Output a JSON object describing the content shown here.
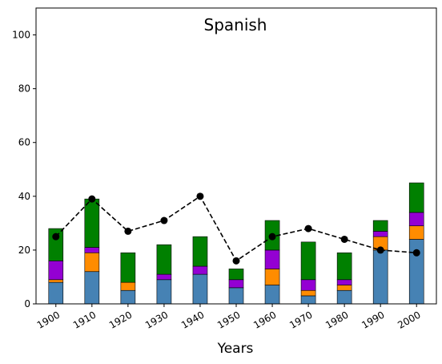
{
  "chart_data": {
    "type": "bar",
    "stacked": true,
    "title": "Spanish",
    "xlabel": "Years",
    "ylabel": "",
    "ylim": [
      0,
      110
    ],
    "yticks": [
      0,
      20,
      40,
      60,
      80,
      100
    ],
    "categories": [
      "1900",
      "1910",
      "1920",
      "1930",
      "1940",
      "1950",
      "1960",
      "1970",
      "1980",
      "1990",
      "2000"
    ],
    "series": [
      {
        "color": "#4682b4",
        "values": [
          8,
          12,
          5,
          9,
          11,
          6,
          7,
          3,
          5,
          20,
          24
        ]
      },
      {
        "color": "#ff8c00",
        "values": [
          1,
          7,
          3,
          0,
          0,
          0,
          6,
          2,
          2,
          5,
          5
        ]
      },
      {
        "color": "#9400d3",
        "values": [
          7,
          2,
          0,
          2,
          3,
          3,
          7,
          4,
          2,
          2,
          5
        ]
      },
      {
        "color": "#008000",
        "values": [
          12,
          18,
          11,
          11,
          11,
          4,
          11,
          14,
          10,
          4,
          11
        ]
      }
    ],
    "line": {
      "color": "#000000",
      "style": "dashed",
      "marker": "circle",
      "values": [
        25,
        39,
        27,
        31,
        40,
        16,
        25,
        28,
        24,
        20,
        19
      ]
    },
    "grid": false,
    "xtick_rotation": -30
  }
}
